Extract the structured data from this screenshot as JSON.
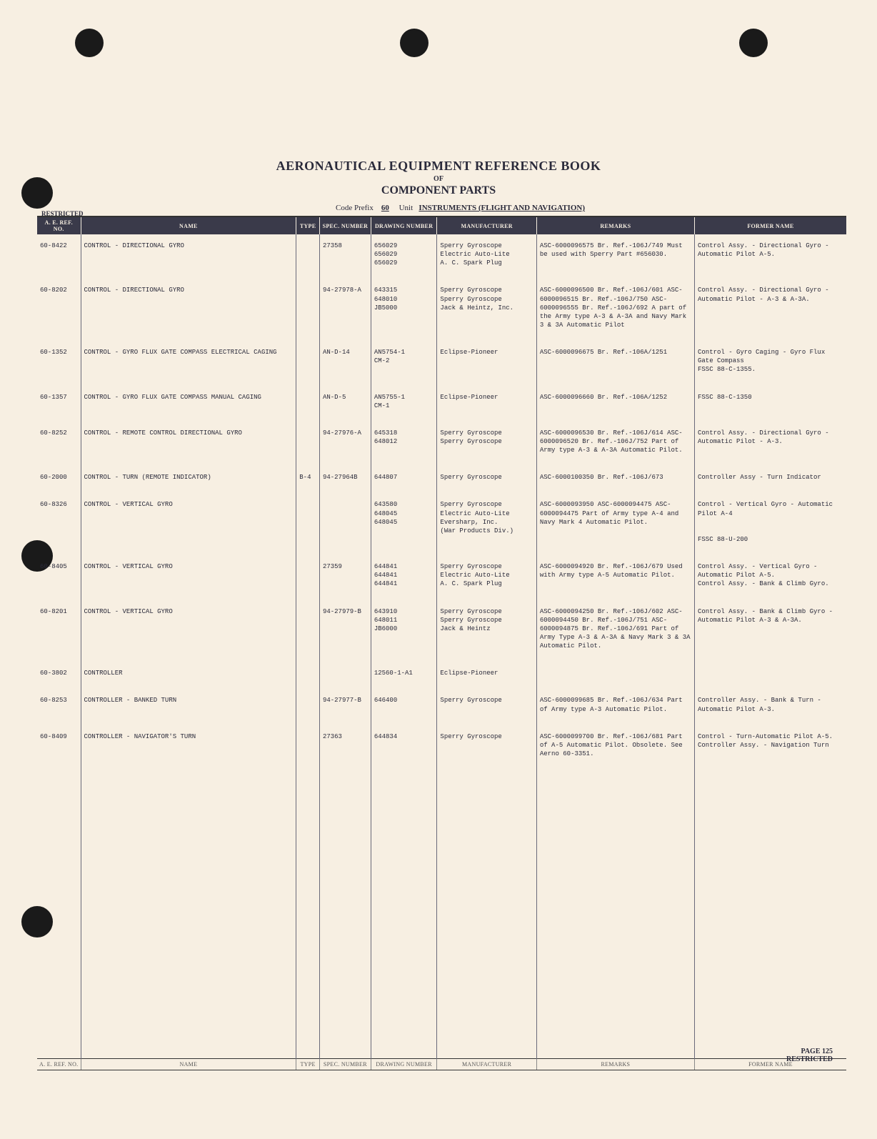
{
  "header": {
    "title_main": "AERONAUTICAL EQUIPMENT REFERENCE BOOK",
    "title_of": "OF",
    "title_sub": "COMPONENT PARTS",
    "code_prefix_label": "Code Prefix",
    "code_prefix_value": "60",
    "unit_label": "Unit",
    "unit_value": "INSTRUMENTS (FLIGHT AND NAVIGATION)",
    "restricted": "RESTRICTED"
  },
  "columns": {
    "ref": "A. E. REF. NO.",
    "name": "NAME",
    "type": "TYPE",
    "spec": "SPEC. NUMBER",
    "draw": "DRAWING NUMBER",
    "mfr": "MANUFACTURER",
    "rem": "REMARKS",
    "former": "FORMER NAME"
  },
  "rows": [
    {
      "ref": "60-8422",
      "name": "CONTROL - DIRECTIONAL GYRO",
      "type": "",
      "spec": "27358",
      "draw": "656029\n656029\n656029",
      "mfr": "Sperry Gyroscope\nElectric Auto-Lite\nA. C. Spark Plug",
      "rem": "ASC-6000096575  Br. Ref.-106J/749\n\nMust be used with Sperry Part #656030.",
      "former": "Control Assy. - Directional Gyro - Automatic Pilot A-5."
    },
    {
      "ref": "60-8202",
      "name": "CONTROL - DIRECTIONAL GYRO",
      "type": "",
      "spec": "94-27978-A",
      "draw": "643315\n648010\nJB5000",
      "mfr": "Sperry Gyroscope\nSperry Gyroscope\nJack & Heintz, Inc.",
      "rem": "ASC-6000096500  Br. Ref.-106J/601\nASC-6000096515  Br. Ref.-106J/750\nASC-6000096555  Br. Ref.-106J/692\nA part of the Army type A-3 & A-3A and Navy Mark 3 & 3A Automatic Pilot",
      "former": "Control Assy. - Directional Gyro - Automatic Pilot - A-3 & A-3A."
    },
    {
      "ref": "60-1352",
      "name": "CONTROL - GYRO FLUX GATE COMPASS ELECTRICAL CAGING",
      "type": "",
      "spec": "AN-D-14",
      "draw": "AN5754-1\nCM-2",
      "mfr": "Eclipse-Pioneer",
      "rem": "ASC-6000096675  Br. Ref.-106A/1251",
      "former": "Control - Gyro Caging - Gyro Flux Gate Compass\nFSSC 88-C-1355."
    },
    {
      "ref": "60-1357",
      "name": "CONTROL - GYRO FLUX GATE COMPASS MANUAL CAGING",
      "type": "",
      "spec": "AN-D-5",
      "draw": "AN5755-1\nCM-1",
      "mfr": "Eclipse-Pioneer",
      "rem": "ASC-6000096660  Br. Ref.-106A/1252",
      "former": "FSSC 88-C-1350"
    },
    {
      "ref": "60-8252",
      "name": "CONTROL - REMOTE CONTROL DIRECTIONAL GYRO",
      "type": "",
      "spec": "94-27976-A",
      "draw": "645318\n648012",
      "mfr": "Sperry Gyroscope\nSperry Gyroscope",
      "rem": "ASC-6000096530  Br. Ref.-106J/614\nASC-6000096520  Br. Ref.-106J/752\nPart of Army type A-3 & A-3A Automatic Pilot.",
      "former": "Control Assy. - Directional Gyro - Automatic Pilot - A-3."
    },
    {
      "ref": "60-2000",
      "name": "CONTROL - TURN (REMOTE INDICATOR)",
      "type": "B-4",
      "spec": "94-27964B",
      "draw": "644807",
      "mfr": "Sperry Gyroscope",
      "rem": "ASC-6000100350  Br. Ref.-106J/673",
      "former": "Controller Assy - Turn Indicator"
    },
    {
      "ref": "60-8326",
      "name": "CONTROL - VERTICAL GYRO",
      "type": "",
      "spec": "",
      "draw": "643580\n648045\n648045",
      "mfr": "Sperry Gyroscope\nElectric Auto-Lite\nEversharp, Inc.\n(War Products Div.)",
      "rem": "ASC-6000093950\nASC-6000094475\nASC-6000094475\n\nPart of Army type A-4 and Navy Mark 4 Automatic Pilot.",
      "former": "Control - Vertical Gyro - Automatic Pilot A-4\n\n\nFSSC  88-U-200"
    },
    {
      "ref": "60-8405",
      "name": "CONTROL - VERTICAL GYRO",
      "type": "",
      "spec": "27359",
      "draw": "644841\n644841\n644841",
      "mfr": "Sperry Gyroscope\nElectric Auto-Lite\nA. C. Spark Plug",
      "rem": "ASC-6000094920  Br. Ref.-106J/679\n\nUsed with Army type A-5 Automatic Pilot.",
      "former": "Control Assy. - Vertical Gyro - Automatic Pilot A-5.\nControl Assy. - Bank & Climb Gyro."
    },
    {
      "ref": "60-8201",
      "name": "CONTROL - VERTICAL GYRO",
      "type": "",
      "spec": "94-27979-B",
      "draw": "643910\n648011\nJB6000",
      "mfr": "Sperry Gyroscope\nSperry Gyroscope\nJack & Heintz",
      "rem": "ASC-6000094250  Br. Ref.-106J/602\nASC-6000094450  Br. Ref.-106J/751\nASC-6000094875  Br. Ref.-106J/691\nPart of Army Type A-3 & A-3A & Navy Mark 3 & 3A Automatic Pilot.",
      "former": "Control Assy. - Bank & Climb Gyro - Automatic Pilot A-3 & A-3A."
    },
    {
      "ref": "60-3802",
      "name": "CONTROLLER",
      "type": "",
      "spec": "",
      "draw": "12560-1-A1",
      "mfr": "Eclipse-Pioneer",
      "rem": "",
      "former": ""
    },
    {
      "ref": "60-8253",
      "name": "CONTROLLER - BANKED TURN",
      "type": "",
      "spec": "94-27977-B",
      "draw": "646400",
      "mfr": "Sperry Gyroscope",
      "rem": "ASC-6000099685  Br. Ref.-106J/634\nPart of Army type A-3 Automatic Pilot.",
      "former": "Controller Assy. - Bank & Turn - Automatic Pilot A-3."
    },
    {
      "ref": "60-8409",
      "name": "CONTROLLER - NAVIGATOR'S TURN",
      "type": "",
      "spec": "27363",
      "draw": "644834",
      "mfr": "Sperry Gyroscope",
      "rem": "ASC-6000099700  Br. Ref.-106J/681\nPart of A-5 Automatic Pilot.\nObsolete.  See Aerno 60-3351.",
      "former": "Control - Turn-Automatic Pilot A-5.\nController Assy. - Navigation Turn"
    }
  ],
  "footer": {
    "page_label": "PAGE 125",
    "restricted": "RESTRICTED"
  }
}
